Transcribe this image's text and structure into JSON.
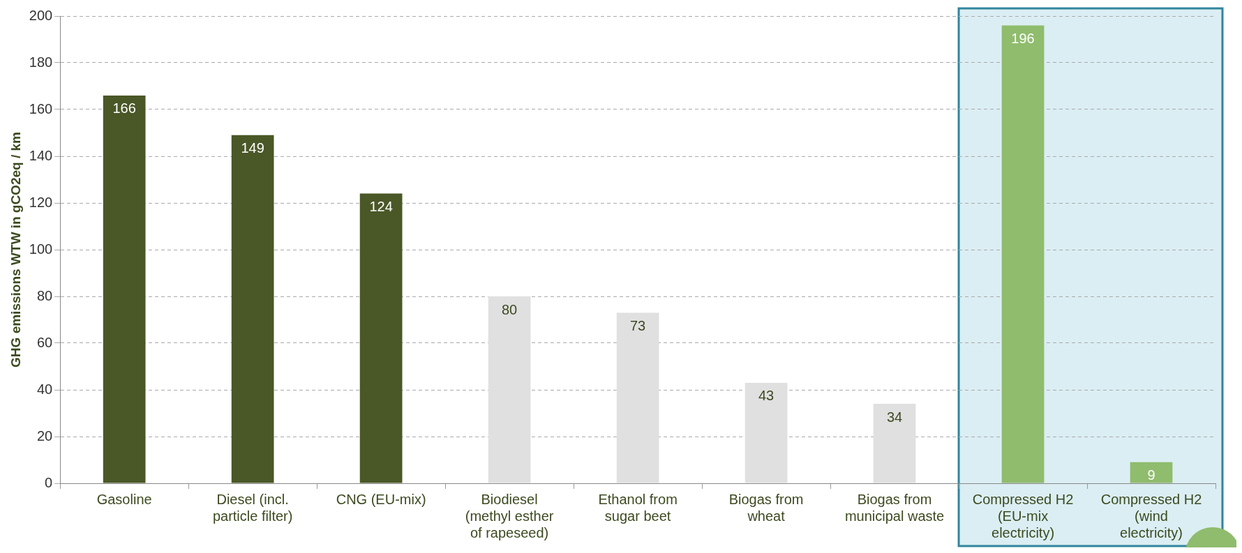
{
  "chart_data": {
    "type": "bar",
    "categories": [
      "Gasoline",
      "Diesel (incl. particle filter)",
      "CNG (EU-mix)",
      "Biodiesel (methyl esther of rapeseed)",
      "Ethanol from sugar beet",
      "Biogas from wheat",
      "Biogas from municipal waste",
      "Compressed H2 (EU-mix electricity)",
      "Compressed H2 (wind electricity)"
    ],
    "values": [
      166,
      149,
      124,
      80,
      73,
      43,
      34,
      196,
      9
    ],
    "colors": [
      "#4a5727",
      "#4a5727",
      "#4a5727",
      "#e0e0e0",
      "#e0e0e0",
      "#e0e0e0",
      "#e0e0e0",
      "#8fbc6d",
      "#8fbc6d"
    ],
    "ylabel": "GHG emissions WTW in gCO2eq / km",
    "ylim": [
      0,
      200
    ],
    "yticks": [
      0,
      20,
      40,
      60,
      80,
      100,
      120,
      140,
      160,
      180,
      200
    ],
    "grid": "y",
    "legend": false,
    "data_labels": true,
    "bands": [
      {
        "axis": "x",
        "from": "Compressed H2 (EU-mix electricity)",
        "to": "Compressed H2 (wind electricity)",
        "color": "#dbeef3"
      }
    ]
  }
}
